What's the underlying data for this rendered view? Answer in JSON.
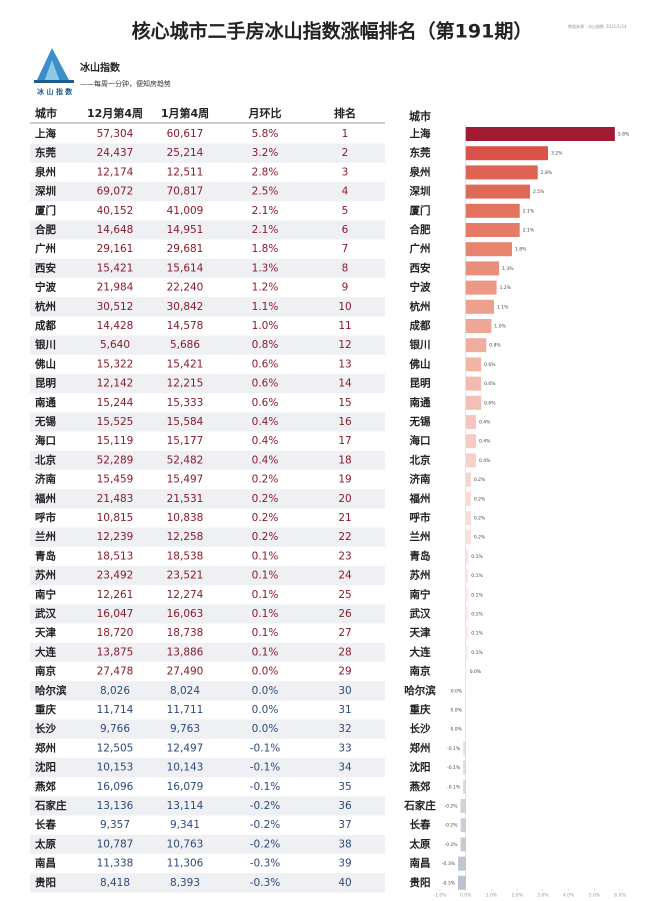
{
  "header": {
    "title": "核心城市二手房冰山指数涨幅排名（第191期）",
    "source": "数据来源：冰山指数",
    "date": "2021/1/24",
    "brand": "冰山指数",
    "logo_text": "冰 山 指 数",
    "slogan": "——每周一分钟，便知房趋势"
  },
  "table": {
    "columns": [
      "城市",
      "12月第4周",
      "1月第4周",
      "月环比",
      "排名"
    ],
    "rows": [
      [
        "上海",
        "57,304",
        "60,617",
        "5.8%",
        "1"
      ],
      [
        "东莞",
        "24,437",
        "25,214",
        "3.2%",
        "2"
      ],
      [
        "泉州",
        "12,174",
        "12,511",
        "2.8%",
        "3"
      ],
      [
        "深圳",
        "69,072",
        "70,817",
        "2.5%",
        "4"
      ],
      [
        "厦门",
        "40,152",
        "41,009",
        "2.1%",
        "5"
      ],
      [
        "合肥",
        "14,648",
        "14,951",
        "2.1%",
        "6"
      ],
      [
        "广州",
        "29,161",
        "29,681",
        "1.8%",
        "7"
      ],
      [
        "西安",
        "15,421",
        "15,614",
        "1.3%",
        "8"
      ],
      [
        "宁波",
        "21,984",
        "22,240",
        "1.2%",
        "9"
      ],
      [
        "杭州",
        "30,512",
        "30,842",
        "1.1%",
        "10"
      ],
      [
        "成都",
        "14,428",
        "14,578",
        "1.0%",
        "11"
      ],
      [
        "银川",
        "5,640",
        "5,686",
        "0.8%",
        "12"
      ],
      [
        "佛山",
        "15,322",
        "15,421",
        "0.6%",
        "13"
      ],
      [
        "昆明",
        "12,142",
        "12,215",
        "0.6%",
        "14"
      ],
      [
        "南通",
        "15,244",
        "15,333",
        "0.6%",
        "15"
      ],
      [
        "无锡",
        "15,525",
        "15,584",
        "0.4%",
        "16"
      ],
      [
        "海口",
        "15,119",
        "15,177",
        "0.4%",
        "17"
      ],
      [
        "北京",
        "52,289",
        "52,482",
        "0.4%",
        "18"
      ],
      [
        "济南",
        "15,459",
        "15,497",
        "0.2%",
        "19"
      ],
      [
        "福州",
        "21,483",
        "21,531",
        "0.2%",
        "20"
      ],
      [
        "呼市",
        "10,815",
        "10,838",
        "0.2%",
        "21"
      ],
      [
        "兰州",
        "12,239",
        "12,258",
        "0.2%",
        "22"
      ],
      [
        "青岛",
        "18,513",
        "18,538",
        "0.1%",
        "23"
      ],
      [
        "苏州",
        "23,492",
        "23,521",
        "0.1%",
        "24"
      ],
      [
        "南宁",
        "12,261",
        "12,274",
        "0.1%",
        "25"
      ],
      [
        "武汉",
        "16,047",
        "16,063",
        "0.1%",
        "26"
      ],
      [
        "天津",
        "18,720",
        "18,738",
        "0.1%",
        "27"
      ],
      [
        "大连",
        "13,875",
        "13,886",
        "0.1%",
        "28"
      ],
      [
        "南京",
        "27,478",
        "27,490",
        "0.0%",
        "29"
      ],
      [
        "哈尔滨",
        "8,026",
        "8,024",
        "0.0%",
        "30"
      ],
      [
        "重庆",
        "11,714",
        "11,711",
        "0.0%",
        "31"
      ],
      [
        "长沙",
        "9,766",
        "9,763",
        "0.0%",
        "32"
      ],
      [
        "郑州",
        "12,505",
        "12,497",
        "-0.1%",
        "33"
      ],
      [
        "沈阳",
        "10,153",
        "10,143",
        "-0.1%",
        "34"
      ],
      [
        "燕郊",
        "16,096",
        "16,079",
        "-0.1%",
        "35"
      ],
      [
        "石家庄",
        "13,136",
        "13,114",
        "-0.2%",
        "36"
      ],
      [
        "长春",
        "9,357",
        "9,341",
        "-0.2%",
        "37"
      ],
      [
        "太原",
        "10,787",
        "10,763",
        "-0.2%",
        "38"
      ],
      [
        "南昌",
        "11,338",
        "11,306",
        "-0.3%",
        "39"
      ],
      [
        "贵阳",
        "8,418",
        "8,393",
        "-0.3%",
        "40"
      ]
    ]
  },
  "chart_data": {
    "type": "bar",
    "y_label": "城市",
    "categories": [
      "上海",
      "东莞",
      "泉州",
      "深圳",
      "厦门",
      "合肥",
      "广州",
      "西安",
      "宁波",
      "杭州",
      "成都",
      "银川",
      "佛山",
      "昆明",
      "南通",
      "无锡",
      "海口",
      "北京",
      "济南",
      "福州",
      "呼市",
      "兰州",
      "青岛",
      "苏州",
      "南宁",
      "武汉",
      "天津",
      "大连",
      "南京",
      "哈尔滨",
      "重庆",
      "长沙",
      "郑州",
      "沈阳",
      "燕郊",
      "石家庄",
      "长春",
      "太原",
      "南昌",
      "贵阳"
    ],
    "values": [
      5.8,
      3.2,
      2.8,
      2.5,
      2.1,
      2.1,
      1.8,
      1.3,
      1.2,
      1.1,
      1.0,
      0.8,
      0.6,
      0.6,
      0.6,
      0.4,
      0.4,
      0.4,
      0.2,
      0.2,
      0.2,
      0.2,
      0.1,
      0.1,
      0.1,
      0.1,
      0.1,
      0.1,
      0.04,
      -0.02,
      -0.03,
      -0.03,
      -0.1,
      -0.1,
      -0.1,
      -0.2,
      -0.2,
      -0.2,
      -0.3,
      -0.3
    ],
    "value_labels": [
      "5.8%",
      "3.2%",
      "2.8%",
      "2.5%",
      "2.1%",
      "2.1%",
      "1.8%",
      "1.3%",
      "1.2%",
      "1.1%",
      "1.0%",
      "0.8%",
      "0.6%",
      "0.6%",
      "0.6%",
      "0.4%",
      "0.4%",
      "0.4%",
      "0.2%",
      "0.2%",
      "0.2%",
      "0.2%",
      "0.1%",
      "0.1%",
      "0.1%",
      "0.1%",
      "0.1%",
      "0.1%",
      "0.0%",
      "0.0%",
      "0.0%",
      "0.0%",
      "-0.1%",
      "-0.1%",
      "-0.1%",
      "-0.2%",
      "-0.2%",
      "-0.2%",
      "-0.3%",
      "-0.3%"
    ],
    "colors": [
      "#9e1b32",
      "#d9534a",
      "#de6353",
      "#e06a58",
      "#e2735f",
      "#e47b66",
      "#e6846d",
      "#e98e79",
      "#eb9885",
      "#eda08e",
      "#efa898",
      "#f0ae9f",
      "#f2b5a8",
      "#f3bbaf",
      "#f4c0b6",
      "#f5c6bd",
      "#f6cbc3",
      "#f7d0c9",
      "#f8d5cf",
      "#f9d9d4",
      "#f9dcd8",
      "#fae0dc",
      "#fae2df",
      "#fbe5e2",
      "#fbe7e5",
      "#fbe9e7",
      "#fcebe9",
      "#fcedeb",
      "#fcefee",
      "#e9ebf0",
      "#e9ebf0",
      "#e9ebf0",
      "#dfe2e8",
      "#dadde4",
      "#d5d9e1",
      "#cfd3dc",
      "#cacfd9",
      "#c5cad5",
      "#c0c6d2",
      "#bbc1ce"
    ],
    "xlim": [
      -1,
      6
    ],
    "xticks": [
      {
        "value": -1,
        "label": "-1.0%"
      },
      {
        "value": 0,
        "label": "0.0%"
      },
      {
        "value": 1,
        "label": "1.0%"
      },
      {
        "value": 2,
        "label": "2.0%"
      },
      {
        "value": 3,
        "label": "3.0%"
      },
      {
        "value": 4,
        "label": "4.0%"
      },
      {
        "value": 5,
        "label": "5.0%"
      },
      {
        "value": 6,
        "label": "6.0%"
      }
    ]
  }
}
